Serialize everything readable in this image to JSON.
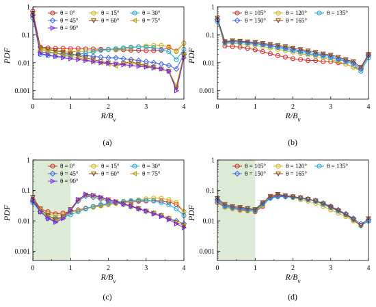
{
  "panels": [
    {
      "label": "(a)",
      "chart_data": {
        "type": "line",
        "x": [
          0.0,
          0.2,
          0.4,
          0.6,
          0.8,
          1.0,
          1.2,
          1.4,
          1.6,
          1.8,
          2.0,
          2.2,
          2.4,
          2.6,
          2.8,
          3.0,
          3.2,
          3.4,
          3.6,
          3.8,
          4.0
        ],
        "xlabel": "R/B_v",
        "ylabel": "PDF",
        "xlim": [
          0,
          4
        ],
        "ylim": [
          0.0005,
          1
        ],
        "yscale": "log",
        "xticks": [
          "0",
          "1",
          "2",
          "3",
          "4"
        ],
        "yticks": [
          "0.001",
          "0.01",
          "0.1",
          "1"
        ],
        "legend_columns": 3,
        "legend_position": "top",
        "series": [
          {
            "name": "θ = 0°",
            "color": "#d62728",
            "marker": "circle",
            "values": [
              0.7,
              0.036,
              0.034,
              0.033,
              0.033,
              0.032,
              0.032,
              0.031,
              0.031,
              0.03,
              0.03,
              0.029,
              0.029,
              0.028,
              0.028,
              0.027,
              0.027,
              0.028,
              0.035,
              0.026,
              0.05
            ]
          },
          {
            "name": "θ = 15°",
            "color": "#d4b11b",
            "marker": "circle",
            "values": [
              0.55,
              0.03,
              0.028,
              0.027,
              0.026,
              0.025,
              0.025,
              0.026,
              0.027,
              0.028,
              0.029,
              0.03,
              0.032,
              0.034,
              0.037,
              0.04,
              0.042,
              0.042,
              0.038,
              0.025,
              0.05
            ]
          },
          {
            "name": "θ = 30°",
            "color": "#1fa6d9",
            "marker": "circle",
            "values": [
              0.4,
              0.02,
              0.018,
              0.017,
              0.017,
              0.018,
              0.02,
              0.022,
              0.025,
              0.028,
              0.03,
              0.032,
              0.034,
              0.036,
              0.037,
              0.036,
              0.034,
              0.03,
              0.025,
              0.013,
              0.03
            ]
          },
          {
            "name": "θ = 45°",
            "color": "#4169e1",
            "marker": "diamond",
            "values": [
              0.5,
              0.024,
              0.023,
              0.022,
              0.021,
              0.02,
              0.019,
              0.018,
              0.017,
              0.016,
              0.015,
              0.015,
              0.014,
              0.013,
              0.012,
              0.011,
              0.01,
              0.009,
              0.008,
              0.006,
              0.02
            ]
          },
          {
            "name": "θ = 60°",
            "color": "#8b4513",
            "marker": "triangle-down",
            "values": [
              0.6,
              0.033,
              0.03,
              0.027,
              0.024,
              0.021,
              0.018,
              0.015,
              0.013,
              0.011,
              0.01,
              0.009,
              0.0095,
              0.011,
              0.009,
              0.008,
              0.007,
              0.006,
              0.005,
              0.0012,
              0.02
            ]
          },
          {
            "name": "θ = 75°",
            "color": "#b8a31a",
            "marker": "triangle-left",
            "values": [
              0.45,
              0.028,
              0.025,
              0.022,
              0.019,
              0.017,
              0.015,
              0.013,
              0.011,
              0.01,
              0.009,
              0.0075,
              0.009,
              0.0095,
              0.0085,
              0.0075,
              0.0068,
              0.006,
              0.005,
              0.0015,
              0.02
            ]
          },
          {
            "name": "θ = 90°",
            "color": "#7b22e6",
            "marker": "triangle-right",
            "values": [
              0.5,
              0.021,
              0.019,
              0.017,
              0.015,
              0.014,
              0.013,
              0.012,
              0.011,
              0.01,
              0.0095,
              0.009,
              0.0085,
              0.008,
              0.0075,
              0.007,
              0.0065,
              0.006,
              0.005,
              0.001,
              0.015
            ]
          }
        ]
      }
    },
    {
      "label": "(b)",
      "chart_data": {
        "type": "line",
        "x": [
          0.0,
          0.2,
          0.4,
          0.6,
          0.8,
          1.0,
          1.2,
          1.4,
          1.6,
          1.8,
          2.0,
          2.2,
          2.4,
          2.6,
          2.8,
          3.0,
          3.2,
          3.4,
          3.6,
          3.8,
          4.0
        ],
        "xlabel": "R/B_v",
        "ylabel": "PDF",
        "xlim": [
          0,
          4
        ],
        "ylim": [
          0.0005,
          1
        ],
        "yscale": "log",
        "xticks": [
          "0",
          "1",
          "2",
          "3",
          "4"
        ],
        "yticks": [
          "0.001",
          "0.01",
          "0.1",
          "1"
        ],
        "legend_columns": 3,
        "legend_position": "top",
        "series": [
          {
            "name": "θ = 105°",
            "color": "#d62728",
            "marker": "circle",
            "values": [
              0.35,
              0.04,
              0.038,
              0.036,
              0.033,
              0.029,
              0.025,
              0.021,
              0.018,
              0.016,
              0.014,
              0.013,
              0.012,
              0.012,
              0.011,
              0.011,
              0.01,
              0.009,
              0.007,
              0.006,
              0.02
            ]
          },
          {
            "name": "θ = 120°",
            "color": "#d4b11b",
            "marker": "circle",
            "values": [
              0.3,
              0.05,
              0.05,
              0.048,
              0.045,
              0.042,
              0.038,
              0.034,
              0.03,
              0.027,
              0.024,
              0.021,
              0.019,
              0.017,
              0.015,
              0.013,
              0.011,
              0.009,
              0.007,
              0.005,
              0.015
            ]
          },
          {
            "name": "θ = 135°",
            "color": "#1fa6d9",
            "marker": "circle",
            "values": [
              0.3,
              0.052,
              0.055,
              0.053,
              0.05,
              0.047,
              0.043,
              0.039,
              0.035,
              0.031,
              0.027,
              0.024,
              0.021,
              0.019,
              0.017,
              0.015,
              0.013,
              0.011,
              0.009,
              0.005,
              0.015
            ]
          },
          {
            "name": "θ = 150°",
            "color": "#4169e1",
            "marker": "diamond",
            "values": [
              0.35,
              0.055,
              0.058,
              0.056,
              0.053,
              0.05,
              0.046,
              0.042,
              0.038,
              0.034,
              0.03,
              0.027,
              0.024,
              0.021,
              0.019,
              0.017,
              0.014,
              0.012,
              0.01,
              0.006,
              0.018
            ]
          },
          {
            "name": "θ = 165°",
            "color": "#8b4513",
            "marker": "triangle-down",
            "values": [
              0.4,
              0.058,
              0.062,
              0.06,
              0.057,
              0.054,
              0.05,
              0.046,
              0.042,
              0.038,
              0.034,
              0.03,
              0.027,
              0.024,
              0.021,
              0.019,
              0.016,
              0.013,
              0.011,
              0.007,
              0.02
            ]
          }
        ]
      }
    },
    {
      "label": "(c)",
      "chart_data": {
        "type": "line",
        "x": [
          0.0,
          0.2,
          0.4,
          0.6,
          0.8,
          1.0,
          1.2,
          1.4,
          1.6,
          1.8,
          2.0,
          2.2,
          2.4,
          2.6,
          2.8,
          3.0,
          3.2,
          3.4,
          3.6,
          3.8,
          4.0
        ],
        "xlabel": "R/B_v",
        "ylabel": "PDF",
        "xlim": [
          0,
          4
        ],
        "ylim": [
          0.0005,
          1
        ],
        "yscale": "log",
        "xticks": [
          "0",
          "1",
          "2",
          "3",
          "4"
        ],
        "yticks": [
          "0.001",
          "0.01",
          "0.1",
          "1"
        ],
        "shaded_region_x": [
          0,
          1
        ],
        "legend_columns": 3,
        "legend_position": "top",
        "series": [
          {
            "name": "θ = 0°",
            "color": "#d62728",
            "marker": "circle",
            "values": [
              0.05,
              0.025,
              0.02,
              0.017,
              0.018,
              0.02,
              0.023,
              0.026,
              0.029,
              0.032,
              0.035,
              0.038,
              0.04,
              0.042,
              0.044,
              0.045,
              0.046,
              0.045,
              0.042,
              0.035,
              0.02
            ]
          },
          {
            "name": "θ = 15°",
            "color": "#d4b11b",
            "marker": "circle",
            "values": [
              0.04,
              0.022,
              0.017,
              0.015,
              0.016,
              0.019,
              0.022,
              0.025,
              0.028,
              0.031,
              0.034,
              0.037,
              0.041,
              0.045,
              0.049,
              0.053,
              0.056,
              0.055,
              0.05,
              0.04,
              0.02
            ]
          },
          {
            "name": "θ = 30°",
            "color": "#1fa6d9",
            "marker": "circle",
            "values": [
              0.04,
              0.02,
              0.014,
              0.012,
              0.013,
              0.016,
              0.02,
              0.025,
              0.03,
              0.034,
              0.038,
              0.041,
              0.044,
              0.046,
              0.047,
              0.047,
              0.045,
              0.04,
              0.034,
              0.025,
              0.015
            ]
          },
          {
            "name": "θ = 45°",
            "color": "#4169e1",
            "marker": "diamond",
            "values": [
              0.045,
              0.02,
              0.012,
              0.01,
              0.013,
              0.022,
              0.045,
              0.065,
              0.06,
              0.052,
              0.045,
              0.04,
              0.035,
              0.03,
              0.025,
              0.021,
              0.018,
              0.015,
              0.012,
              0.01,
              0.008
            ]
          },
          {
            "name": "θ = 60°",
            "color": "#8b4513",
            "marker": "triangle-down",
            "values": [
              0.06,
              0.025,
              0.015,
              0.011,
              0.014,
              0.024,
              0.05,
              0.072,
              0.068,
              0.058,
              0.05,
              0.043,
              0.037,
              0.031,
              0.026,
              0.021,
              0.018,
              0.015,
              0.012,
              0.009,
              0.007
            ]
          },
          {
            "name": "θ = 75°",
            "color": "#b8a31a",
            "marker": "triangle-left",
            "values": [
              0.05,
              0.022,
              0.013,
              0.01,
              0.013,
              0.023,
              0.048,
              0.07,
              0.066,
              0.057,
              0.049,
              0.042,
              0.036,
              0.03,
              0.025,
              0.021,
              0.018,
              0.015,
              0.012,
              0.009,
              0.007
            ]
          },
          {
            "name": "θ = 90°",
            "color": "#7b22e6",
            "marker": "triangle-right",
            "values": [
              0.05,
              0.02,
              0.012,
              0.009,
              0.012,
              0.022,
              0.05,
              0.075,
              0.07,
              0.06,
              0.05,
              0.043,
              0.036,
              0.03,
              0.025,
              0.021,
              0.017,
              0.014,
              0.011,
              0.008,
              0.006
            ]
          }
        ]
      }
    },
    {
      "label": "(d)",
      "chart_data": {
        "type": "line",
        "x": [
          0.0,
          0.2,
          0.4,
          0.6,
          0.8,
          1.0,
          1.2,
          1.4,
          1.6,
          1.8,
          2.0,
          2.2,
          2.4,
          2.6,
          2.8,
          3.0,
          3.2,
          3.4,
          3.6,
          3.8,
          4.0
        ],
        "xlabel": "R/B_v",
        "ylabel": "PDF",
        "xlim": [
          0,
          4
        ],
        "ylim": [
          0.0005,
          1
        ],
        "yscale": "log",
        "xticks": [
          "0",
          "1",
          "2",
          "3",
          "4"
        ],
        "yticks": [
          "0.001",
          "0.01",
          "0.1",
          "1"
        ],
        "shaded_region_x": [
          0,
          1
        ],
        "legend_columns": 3,
        "legend_position": "top",
        "series": [
          {
            "name": "θ = 105°",
            "color": "#d62728",
            "marker": "circle",
            "values": [
              0.04,
              0.028,
              0.025,
              0.023,
              0.022,
              0.02,
              0.03,
              0.06,
              0.07,
              0.065,
              0.06,
              0.055,
              0.05,
              0.045,
              0.035,
              0.027,
              0.021,
              0.016,
              0.011,
              0.007,
              0.01
            ]
          },
          {
            "name": "θ = 120°",
            "color": "#d4b11b",
            "marker": "circle",
            "values": [
              0.045,
              0.028,
              0.025,
              0.022,
              0.021,
              0.021,
              0.032,
              0.058,
              0.066,
              0.063,
              0.058,
              0.05,
              0.044,
              0.038,
              0.03,
              0.023,
              0.018,
              0.014,
              0.01,
              0.007,
              0.01
            ]
          },
          {
            "name": "θ = 135°",
            "color": "#1fa6d9",
            "marker": "circle",
            "values": [
              0.045,
              0.03,
              0.027,
              0.025,
              0.023,
              0.022,
              0.035,
              0.055,
              0.062,
              0.062,
              0.06,
              0.055,
              0.05,
              0.044,
              0.035,
              0.028,
              0.021,
              0.016,
              0.011,
              0.007,
              0.01
            ]
          },
          {
            "name": "θ = 150°",
            "color": "#4169e1",
            "marker": "diamond",
            "values": [
              0.05,
              0.032,
              0.028,
              0.026,
              0.025,
              0.023,
              0.038,
              0.058,
              0.065,
              0.064,
              0.062,
              0.057,
              0.052,
              0.046,
              0.038,
              0.03,
              0.023,
              0.017,
              0.012,
              0.008,
              0.011
            ]
          },
          {
            "name": "θ = 165°",
            "color": "#8b4513",
            "marker": "triangle-down",
            "values": [
              0.055,
              0.035,
              0.03,
              0.028,
              0.026,
              0.024,
              0.04,
              0.065,
              0.075,
              0.068,
              0.063,
              0.058,
              0.052,
              0.046,
              0.037,
              0.029,
              0.022,
              0.016,
              0.011,
              0.007,
              0.012
            ]
          }
        ]
      }
    }
  ]
}
